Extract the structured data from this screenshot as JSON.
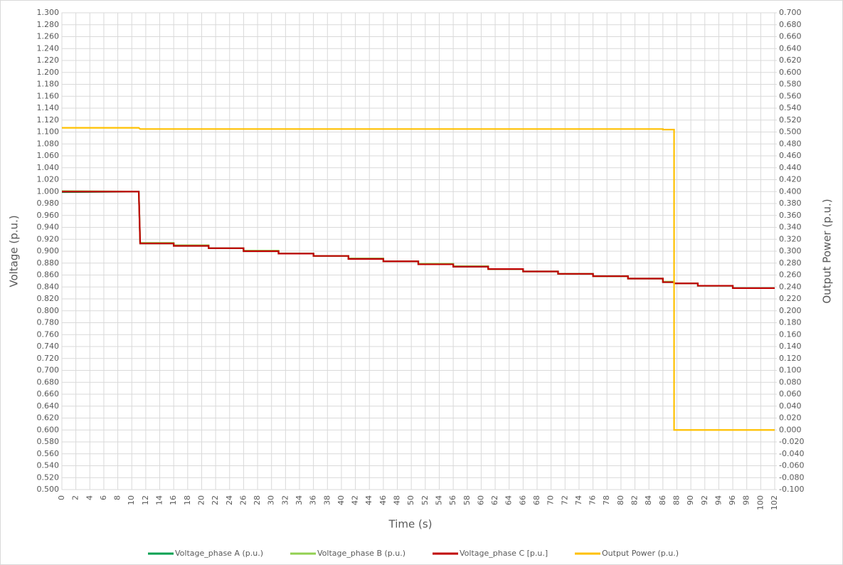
{
  "chart_data": {
    "type": "line",
    "x_label": "Time (s)",
    "y_label": "Voltage (p.u.)",
    "y2_label": "Output Power (p.u.)",
    "x": [
      0,
      11,
      11.2,
      16,
      16,
      21,
      21,
      26,
      26,
      31,
      31,
      36,
      36,
      41,
      41,
      46,
      46,
      51,
      51,
      56,
      56,
      61,
      61,
      66,
      66,
      71,
      71,
      76,
      76,
      81,
      81,
      86,
      86,
      87.6,
      87.6,
      91,
      91,
      96,
      96,
      102
    ],
    "series": [
      {
        "name": "Voltage_phase A (p.u.)",
        "color": "#00a050",
        "values": [
          0.999,
          1.0,
          0.913,
          0.913,
          0.909,
          0.909,
          0.905,
          0.905,
          0.9,
          0.9,
          0.896,
          0.896,
          0.892,
          0.892,
          0.887,
          0.887,
          0.883,
          0.883,
          0.878,
          0.878,
          0.874,
          0.874,
          0.87,
          0.87,
          0.866,
          0.866,
          0.862,
          0.862,
          0.858,
          0.858,
          0.854,
          0.854,
          0.848,
          0.848,
          0.846,
          0.846,
          0.842,
          0.842,
          0.838,
          0.838
        ]
      },
      {
        "name": "Voltage_phase B (p.u.)",
        "color": "#92d050",
        "values": [
          1.001,
          1.0,
          0.914,
          0.914,
          0.91,
          0.91,
          0.905,
          0.905,
          0.901,
          0.901,
          0.896,
          0.896,
          0.892,
          0.892,
          0.888,
          0.888,
          0.883,
          0.883,
          0.879,
          0.879,
          0.875,
          0.875,
          0.87,
          0.87,
          0.866,
          0.866,
          0.862,
          0.862,
          0.858,
          0.858,
          0.854,
          0.854,
          0.849,
          0.849,
          0.846,
          0.846,
          0.842,
          0.842,
          0.838,
          0.838
        ]
      },
      {
        "name": "Voltage_phase C [p.u.]",
        "color": "#c00000",
        "values": [
          1.0,
          1.0,
          0.913,
          0.913,
          0.909,
          0.909,
          0.905,
          0.905,
          0.9,
          0.9,
          0.896,
          0.896,
          0.892,
          0.892,
          0.887,
          0.887,
          0.883,
          0.883,
          0.878,
          0.878,
          0.874,
          0.874,
          0.87,
          0.87,
          0.866,
          0.866,
          0.862,
          0.862,
          0.858,
          0.858,
          0.854,
          0.854,
          0.848,
          0.848,
          0.846,
          0.846,
          0.842,
          0.842,
          0.838,
          0.838
        ]
      },
      {
        "name": "Output Power (p.u.)",
        "color": "#ffc000",
        "axis": "y2",
        "values": [
          0.507,
          0.507,
          0.505,
          0.505,
          0.505,
          0.505,
          0.505,
          0.505,
          0.505,
          0.505,
          0.505,
          0.505,
          0.505,
          0.505,
          0.505,
          0.505,
          0.505,
          0.505,
          0.505,
          0.505,
          0.505,
          0.505,
          0.505,
          0.505,
          0.505,
          0.505,
          0.505,
          0.505,
          0.505,
          0.505,
          0.505,
          0.505,
          0.504,
          0.504,
          0.0,
          0.0,
          0.0,
          0.0,
          0.0,
          0.0
        ]
      }
    ],
    "xlim": [
      0,
      102
    ],
    "xticks": [
      0,
      2,
      4,
      6,
      8,
      10,
      12,
      14,
      16,
      18,
      20,
      22,
      24,
      26,
      28,
      30,
      32,
      34,
      36,
      38,
      40,
      42,
      44,
      46,
      48,
      50,
      52,
      54,
      56,
      58,
      60,
      62,
      64,
      66,
      68,
      70,
      72,
      74,
      76,
      78,
      80,
      82,
      84,
      86,
      88,
      90,
      92,
      94,
      96,
      98,
      100,
      102
    ],
    "ylim": [
      0.5,
      1.3
    ],
    "yticks": [
      {
        "value": 0.5,
        "label": "0.500"
      },
      {
        "value": 0.52,
        "label": "0.520"
      },
      {
        "value": 0.54,
        "label": "0.540"
      },
      {
        "value": 0.56,
        "label": "0.560"
      },
      {
        "value": 0.58,
        "label": "0.580"
      },
      {
        "value": 0.6,
        "label": "0.600"
      },
      {
        "value": 0.62,
        "label": "0.620"
      },
      {
        "value": 0.64,
        "label": "0.640"
      },
      {
        "value": 0.66,
        "label": "0.660"
      },
      {
        "value": 0.68,
        "label": "0.680"
      },
      {
        "value": 0.7,
        "label": "0.700"
      },
      {
        "value": 0.72,
        "label": "0.720"
      },
      {
        "value": 0.74,
        "label": "0.740"
      },
      {
        "value": 0.76,
        "label": "0.760"
      },
      {
        "value": 0.78,
        "label": "0.780"
      },
      {
        "value": 0.8,
        "label": "0.800"
      },
      {
        "value": 0.82,
        "label": "0.820"
      },
      {
        "value": 0.84,
        "label": "0.840"
      },
      {
        "value": 0.86,
        "label": "0.860"
      },
      {
        "value": 0.88,
        "label": "0.880"
      },
      {
        "value": 0.9,
        "label": "0.900"
      },
      {
        "value": 0.92,
        "label": "0.920"
      },
      {
        "value": 0.94,
        "label": "0.940"
      },
      {
        "value": 0.96,
        "label": "0.960"
      },
      {
        "value": 0.98,
        "label": "0.980"
      },
      {
        "value": 1.0,
        "label": "1.000"
      },
      {
        "value": 1.02,
        "label": "1.020"
      },
      {
        "value": 1.04,
        "label": "1.040"
      },
      {
        "value": 1.06,
        "label": "1.060"
      },
      {
        "value": 1.08,
        "label": "1.080"
      },
      {
        "value": 1.1,
        "label": "1.100"
      },
      {
        "value": 1.12,
        "label": "1.120"
      },
      {
        "value": 1.14,
        "label": "1.140"
      },
      {
        "value": 1.16,
        "label": "1.160"
      },
      {
        "value": 1.18,
        "label": "1.180"
      },
      {
        "value": 1.2,
        "label": "1.200"
      },
      {
        "value": 1.22,
        "label": "1.220"
      },
      {
        "value": 1.24,
        "label": "1.240"
      },
      {
        "value": 1.26,
        "label": "1.260"
      },
      {
        "value": 1.28,
        "label": "1.280"
      },
      {
        "value": 1.3,
        "label": "1.300"
      }
    ],
    "y2lim": [
      -0.1,
      0.7
    ],
    "y2ticks": [
      {
        "value": -0.1,
        "label": "-0.100"
      },
      {
        "value": -0.08,
        "label": "-0.080"
      },
      {
        "value": -0.06,
        "label": "-0.060"
      },
      {
        "value": -0.04,
        "label": "-0.040"
      },
      {
        "value": -0.02,
        "label": "-0.020"
      },
      {
        "value": 0,
        "label": "0.000"
      },
      {
        "value": 0.02,
        "label": "0.020"
      },
      {
        "value": 0.04,
        "label": "0.040"
      },
      {
        "value": 0.06,
        "label": "0.060"
      },
      {
        "value": 0.08,
        "label": "0.080"
      },
      {
        "value": 0.1,
        "label": "0.100"
      },
      {
        "value": 0.12,
        "label": "0.120"
      },
      {
        "value": 0.14,
        "label": "0.140"
      },
      {
        "value": 0.16,
        "label": "0.160"
      },
      {
        "value": 0.18,
        "label": "0.180"
      },
      {
        "value": 0.2,
        "label": "0.200"
      },
      {
        "value": 0.22,
        "label": "0.220"
      },
      {
        "value": 0.24,
        "label": "0.240"
      },
      {
        "value": 0.26,
        "label": "0.260"
      },
      {
        "value": 0.28,
        "label": "0.280"
      },
      {
        "value": 0.3,
        "label": "0.300"
      },
      {
        "value": 0.32,
        "label": "0.320"
      },
      {
        "value": 0.34,
        "label": "0.340"
      },
      {
        "value": 0.36,
        "label": "0.360"
      },
      {
        "value": 0.38,
        "label": "0.380"
      },
      {
        "value": 0.4,
        "label": "0.400"
      },
      {
        "value": 0.42,
        "label": "0.420"
      },
      {
        "value": 0.44,
        "label": "0.440"
      },
      {
        "value": 0.46,
        "label": "0.460"
      },
      {
        "value": 0.48,
        "label": "0.480"
      },
      {
        "value": 0.5,
        "label": "0.500"
      },
      {
        "value": 0.52,
        "label": "0.520"
      },
      {
        "value": 0.54,
        "label": "0.540"
      },
      {
        "value": 0.56,
        "label": "0.560"
      },
      {
        "value": 0.58,
        "label": "0.580"
      },
      {
        "value": 0.6,
        "label": "0.600"
      },
      {
        "value": 0.62,
        "label": "0.620"
      },
      {
        "value": 0.64,
        "label": "0.640"
      },
      {
        "value": 0.66,
        "label": "0.660"
      },
      {
        "value": 0.68,
        "label": "0.680"
      },
      {
        "value": 0.7,
        "label": "0.700"
      }
    ],
    "grid": true,
    "legend": "bottom"
  }
}
